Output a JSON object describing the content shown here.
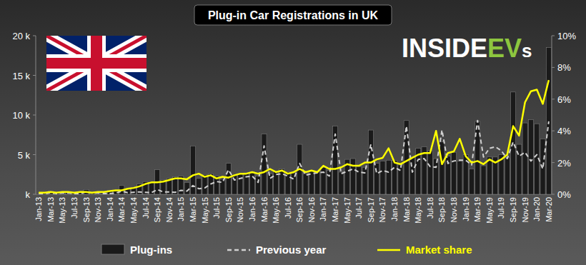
{
  "chart_data": {
    "type": "bar",
    "title": "Plug-in Car Registrations in UK",
    "annotations": [
      "INSIDEEVs"
    ],
    "categories": [
      "Jan-13",
      null,
      "Mar-13",
      null,
      "May-13",
      null,
      "Jul-13",
      null,
      "Sep-13",
      null,
      "Nov-13",
      null,
      "Jan-14",
      null,
      "Mar-14",
      null,
      "May-14",
      null,
      "Jul-14",
      null,
      "Sep-14",
      null,
      "Nov-14",
      null,
      "Jan-15",
      null,
      "Mar-15",
      null,
      "May-15",
      null,
      "Jul-15",
      null,
      "Sep-15",
      null,
      "Nov-15",
      null,
      "Jan-16",
      null,
      "Mar-16",
      null,
      "May-16",
      null,
      "Jul-16",
      null,
      "Sep-16",
      null,
      "Nov-16",
      null,
      "Jan-17",
      null,
      "Mar-17",
      null,
      "May-17",
      null,
      "Jul-17",
      null,
      "Sep-17",
      null,
      "Nov-17",
      null,
      "Jan-18",
      null,
      "Mar-18",
      null,
      "May-18",
      null,
      "Jul-18",
      null,
      "Sep-18",
      null,
      "Nov-18",
      null,
      "Jan-19",
      null,
      "Mar-19",
      null,
      "May-19",
      null,
      "Jul-19",
      null,
      "Sep-19",
      null,
      "Nov-19",
      null,
      "Jan-20",
      null,
      "Mar-20"
    ],
    "series": [
      {
        "name": "Plug-ins",
        "type": "bar",
        "color": "#1a1a1a",
        "values": [
          100,
          150,
          400,
          200,
          250,
          300,
          250,
          200,
          600,
          300,
          300,
          250,
          500,
          400,
          1100,
          700,
          800,
          1300,
          1600,
          1500,
          3100,
          1800,
          2000,
          2200,
          2300,
          1500,
          6100,
          2000,
          2500,
          2600,
          2300,
          1900,
          3900,
          2400,
          2600,
          2700,
          2800,
          2300,
          7600,
          2600,
          2900,
          3200,
          2800,
          2700,
          6300,
          2600,
          3000,
          2800,
          3400,
          3000,
          8600,
          2800,
          4400,
          4500,
          3500,
          3400,
          8100,
          3900,
          4200,
          4300,
          4300,
          3700,
          9300,
          4700,
          5800,
          6000,
          5500,
          4500,
          6600,
          4800,
          5300,
          4200,
          5000,
          3200,
          9200,
          3600,
          4700,
          4700,
          5000,
          4600,
          12900,
          6300,
          9000,
          9400,
          8900,
          7000,
          18500
        ]
      },
      {
        "name": "Previous year",
        "type": "line",
        "color": "#d0d0d0",
        "line_style": "dashed",
        "values": [
          100,
          80,
          200,
          100,
          150,
          150,
          100,
          100,
          300,
          150,
          150,
          100,
          100,
          150,
          400,
          200,
          250,
          300,
          250,
          200,
          600,
          300,
          300,
          250,
          500,
          400,
          1100,
          700,
          800,
          1300,
          1600,
          1500,
          3100,
          1800,
          2000,
          2200,
          2300,
          1500,
          6100,
          2000,
          2500,
          2600,
          2300,
          1900,
          3900,
          2400,
          2600,
          2700,
          2800,
          2300,
          7600,
          2600,
          2900,
          3200,
          2800,
          2700,
          6300,
          2600,
          3000,
          2800,
          3400,
          3000,
          8600,
          2800,
          4400,
          4500,
          3500,
          3400,
          8100,
          3900,
          4200,
          4300,
          4300,
          3700,
          9300,
          4700,
          5800,
          6000,
          5500,
          4500,
          6600,
          4800,
          5300,
          4200,
          5000,
          3200,
          9200
        ]
      },
      {
        "name": "Market share",
        "type": "line",
        "color": "#ffff00",
        "line_style": "solid",
        "axis": "y2",
        "values": [
          0.1,
          0.1,
          0.15,
          0.1,
          0.15,
          0.15,
          0.1,
          0.15,
          0.15,
          0.1,
          0.15,
          0.15,
          0.2,
          0.25,
          0.25,
          0.35,
          0.4,
          0.5,
          0.65,
          0.75,
          0.75,
          0.8,
          0.9,
          1.0,
          1.0,
          0.95,
          1.2,
          1.3,
          1.1,
          1.2,
          1.0,
          1.1,
          1.05,
          1.2,
          1.3,
          1.3,
          1.4,
          1.3,
          1.4,
          1.6,
          1.4,
          1.5,
          1.3,
          1.4,
          1.6,
          1.4,
          1.5,
          1.4,
          1.8,
          1.6,
          1.6,
          1.7,
          1.9,
          1.8,
          1.8,
          2.0,
          2.0,
          2.2,
          2.3,
          2.9,
          2.0,
          1.9,
          2.1,
          2.3,
          2.5,
          2.6,
          2.6,
          4.0,
          1.9,
          2.6,
          2.7,
          3.5,
          2.4,
          2.0,
          2.1,
          1.9,
          2.2,
          2.0,
          2.2,
          2.5,
          4.3,
          3.7,
          5.8,
          6.5,
          6.6,
          5.7,
          7.2
        ]
      }
    ],
    "ylim": [
      0,
      20000
    ],
    "yticks": [
      {
        "value": 0,
        "label": "k"
      },
      {
        "value": 5000,
        "label": "5 k"
      },
      {
        "value": 10000,
        "label": "10 k"
      },
      {
        "value": 15000,
        "label": "15 k"
      },
      {
        "value": 20000,
        "label": "20 k"
      }
    ],
    "y2lim": [
      0,
      10
    ],
    "y2ticks": [
      {
        "value": 0,
        "label": "0%"
      },
      {
        "value": 2,
        "label": "2%"
      },
      {
        "value": 4,
        "label": "4%"
      },
      {
        "value": 6,
        "label": "6%"
      },
      {
        "value": 8,
        "label": "8%"
      },
      {
        "value": 10,
        "label": "10%"
      }
    ],
    "grid": false,
    "legend": "bottom"
  }
}
